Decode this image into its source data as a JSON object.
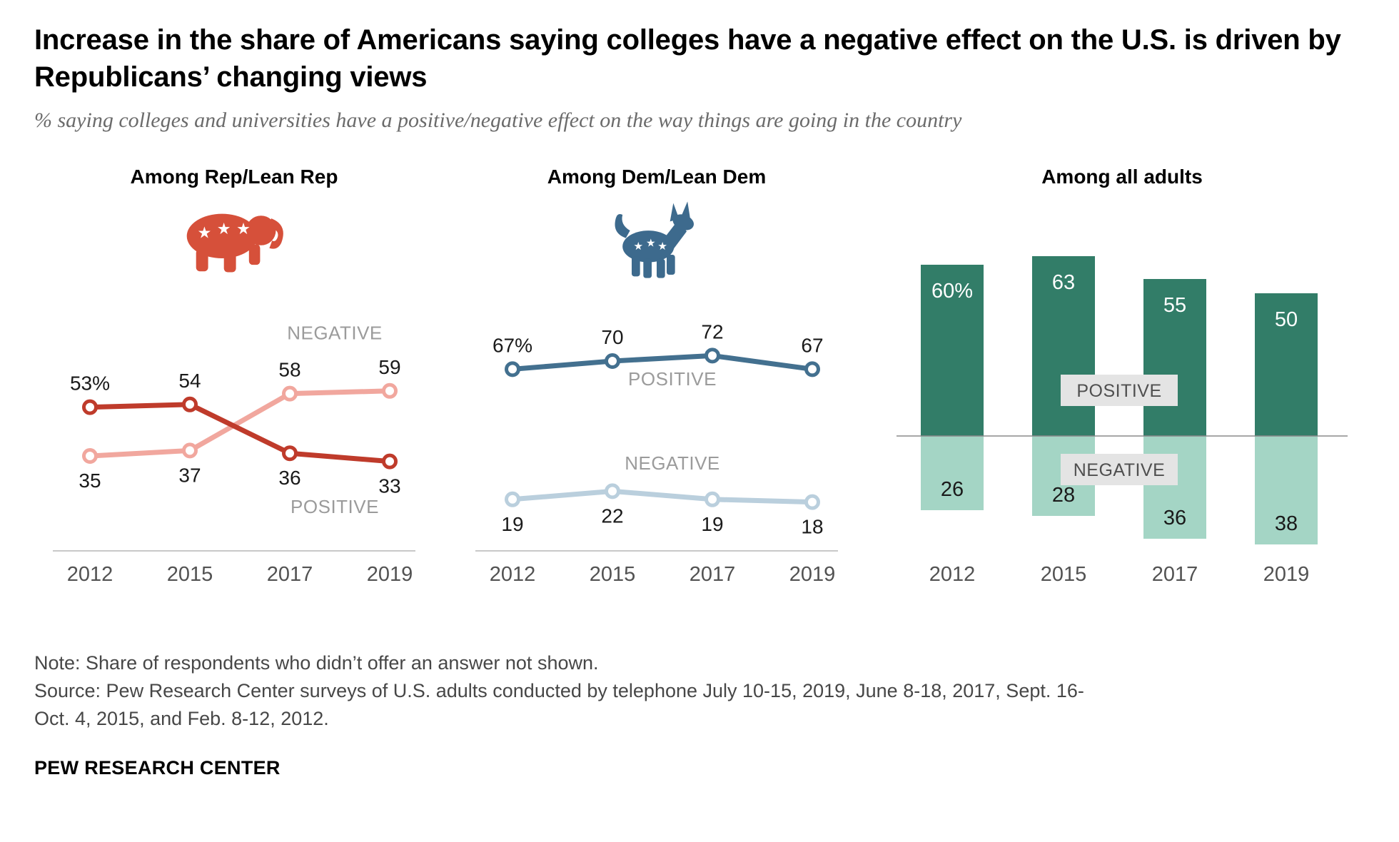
{
  "header": {
    "title": "Increase in the share of Americans saying colleges have a negative effect on the U.S. is driven by Republicans’ changing views",
    "subtitle": "% saying colleges and universities have a positive/negative effect on the way things are going in the country"
  },
  "colors": {
    "rep_positive": "#bf3b2b",
    "rep_negative": "#f1a79e",
    "dem_positive": "#43708f",
    "dem_negative": "#bacfdd",
    "all_positive": "#327d68",
    "all_negative": "#a4d5c5",
    "axis_line": "#c8c8c8",
    "baseline": "#8a8a8a",
    "value_label": "#1a1a1a",
    "year_label": "#525252",
    "series_annotation": "#9b9b9b",
    "annotation_box_bg": "#e4e4e4",
    "annotation_box_text": "#4f4f4f",
    "icon_republican": "#d6503a",
    "icon_democrat": "#3d6a8d"
  },
  "chart_data": [
    {
      "type": "line",
      "title": "Among Rep/Lean Rep",
      "icon": "republican-elephant-icon",
      "categories": [
        "2012",
        "2015",
        "2017",
        "2019"
      ],
      "ylim": [
        0,
        100
      ],
      "unit": "%",
      "grid": false,
      "series": [
        {
          "name": "POSITIVE",
          "values": [
            53,
            54,
            36,
            33
          ],
          "point_labels": [
            "53%",
            "54",
            "36",
            "33"
          ],
          "label_side": [
            "above",
            "above",
            "below",
            "below"
          ],
          "color_key": "rep_positive"
        },
        {
          "name": "NEGATIVE",
          "values": [
            35,
            37,
            58,
            59
          ],
          "point_labels": [
            "35",
            "37",
            "58",
            "59"
          ],
          "label_side": [
            "below",
            "below",
            "above",
            "above"
          ],
          "color_key": "rep_negative"
        }
      ],
      "annotations": [
        {
          "text": "NEGATIVE",
          "x": 2.45,
          "value": 78
        },
        {
          "text": "POSITIVE",
          "x": 2.45,
          "value": 14
        }
      ]
    },
    {
      "type": "line",
      "title": "Among Dem/Lean Dem",
      "icon": "democrat-donkey-icon",
      "categories": [
        "2012",
        "2015",
        "2017",
        "2019"
      ],
      "ylim": [
        0,
        100
      ],
      "unit": "%",
      "grid": false,
      "series": [
        {
          "name": "POSITIVE",
          "values": [
            67,
            70,
            72,
            67
          ],
          "point_labels": [
            "67%",
            "70",
            "72",
            "67"
          ],
          "label_side": [
            "above",
            "above",
            "above",
            "above"
          ],
          "color_key": "dem_positive"
        },
        {
          "name": "NEGATIVE",
          "values": [
            19,
            22,
            19,
            18
          ],
          "point_labels": [
            "19",
            "22",
            "19",
            "18"
          ],
          "label_side": [
            "below",
            "below",
            "below",
            "below"
          ],
          "color_key": "dem_negative"
        }
      ],
      "annotations": [
        {
          "text": "POSITIVE",
          "x": 1.6,
          "value": 61
        },
        {
          "text": "NEGATIVE",
          "x": 1.6,
          "value": 30
        }
      ]
    },
    {
      "type": "bar",
      "title": "Among all adults",
      "categories": [
        "2012",
        "2015",
        "2017",
        "2019"
      ],
      "ylim": [
        -40,
        70
      ],
      "unit": "%",
      "grid": false,
      "series": [
        {
          "name": "POSITIVE",
          "values": [
            60,
            63,
            55,
            50
          ],
          "bar_labels": [
            "60%",
            "63",
            "55",
            "50"
          ],
          "direction": "up",
          "color_key": "all_positive",
          "label_color": "#ffffff"
        },
        {
          "name": "NEGATIVE",
          "values": [
            26,
            28,
            36,
            38
          ],
          "bar_labels": [
            "26",
            "28",
            "36",
            "38"
          ],
          "direction": "down",
          "color_key": "all_negative",
          "label_color": "#1a1a1a"
        }
      ],
      "annotations": [
        {
          "text": "POSITIVE",
          "side": "above"
        },
        {
          "text": "NEGATIVE",
          "side": "below"
        }
      ]
    }
  ],
  "footer": {
    "note": "Note: Share of respondents who didn’t offer an answer not shown.",
    "source": "Source: Pew Research Center surveys of U.S. adults conducted by telephone July 10-15, 2019, June 8-18, 2017, Sept. 16-Oct. 4, 2015, and Feb. 8-12, 2012.",
    "brand": "PEW RESEARCH CENTER"
  }
}
